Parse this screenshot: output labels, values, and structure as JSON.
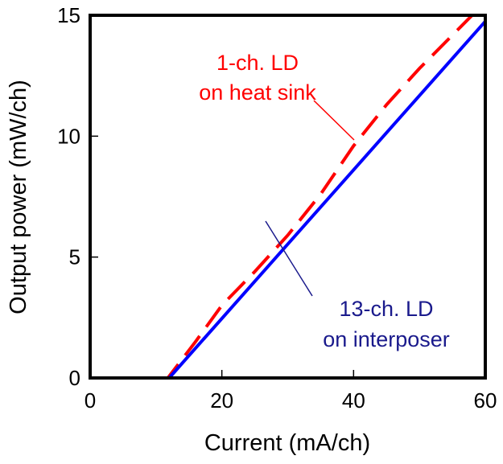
{
  "chart_data": {
    "type": "line",
    "title": "",
    "xlabel": "Current (mA/ch)",
    "ylabel": "Output power (mW/ch)",
    "xlim": [
      0,
      60
    ],
    "ylim": [
      0,
      15
    ],
    "xticks": [
      "0",
      "20",
      "40",
      "60"
    ],
    "yticks": [
      "0",
      "5",
      "10",
      "15"
    ],
    "grid": false,
    "series": [
      {
        "name": "1-ch. LD on heat sink",
        "style": "dashed",
        "color": "#ff0000",
        "x": [
          0,
          11.8,
          16,
          20,
          25,
          30,
          35,
          40,
          45,
          50,
          58
        ],
        "y": [
          0,
          0,
          1.5,
          3.0,
          4.4,
          5.9,
          7.6,
          9.6,
          11.3,
          12.8,
          15
        ]
      },
      {
        "name": "13-ch. LD on interposer",
        "style": "solid",
        "color": "#0000ff",
        "x": [
          12,
          60
        ],
        "y": [
          0,
          14.75
        ]
      }
    ],
    "annotations": [
      {
        "lines": [
          "1-ch. LD",
          "on heat sink"
        ],
        "color": "#ff0000"
      },
      {
        "lines": [
          "13-ch. LD",
          "on interposer"
        ],
        "color": "#1a1a8c"
      }
    ]
  }
}
